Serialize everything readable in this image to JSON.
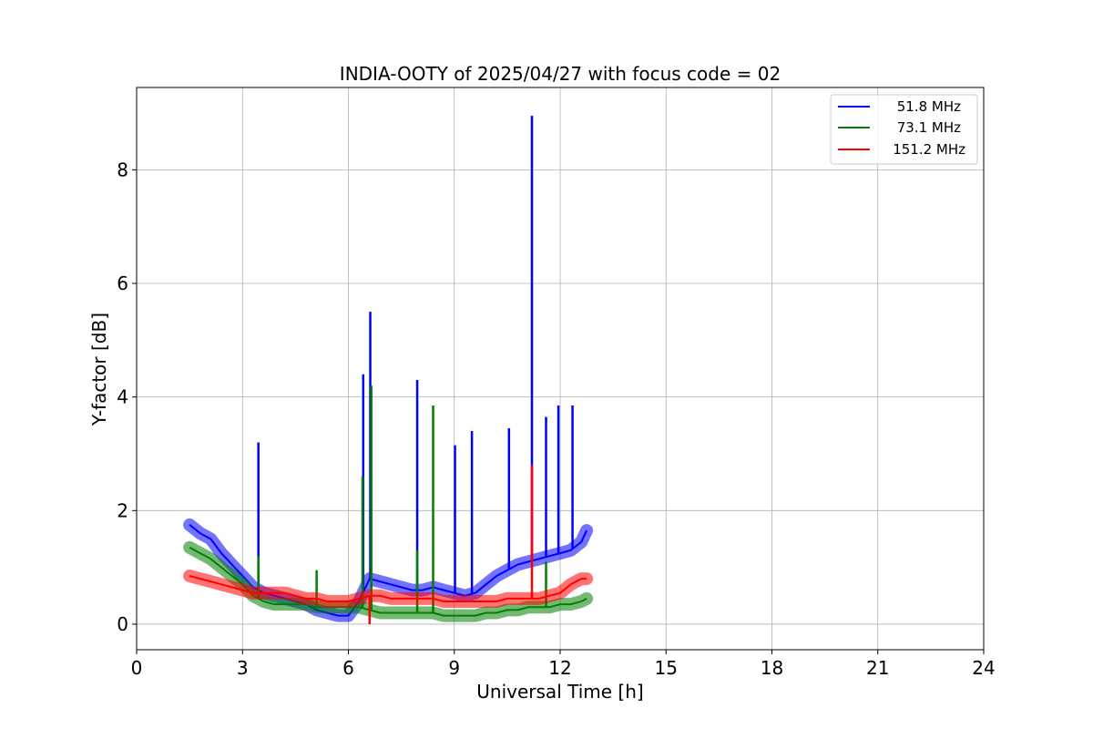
{
  "chart_data": {
    "type": "line",
    "title": "INDIA-OOTY of 2025/04/27 with focus code = 02",
    "xlabel": "Universal Time [h]",
    "ylabel": "Y-factor [dB]",
    "xlim": [
      0,
      24
    ],
    "ylim": [
      -0.45,
      9.45
    ],
    "xticks": [
      0,
      3,
      6,
      9,
      12,
      15,
      18,
      21,
      24
    ],
    "yticks": [
      0,
      2,
      4,
      6,
      8
    ],
    "grid": true,
    "legend_position": "top-right",
    "series": [
      {
        "name": "51.8 MHz",
        "color": "#0000ff",
        "x": [
          1.5,
          1.8,
          2.1,
          2.4,
          2.7,
          3.0,
          3.3,
          3.6,
          3.9,
          4.2,
          4.5,
          4.8,
          5.1,
          5.4,
          5.7,
          6.0,
          6.3,
          6.6,
          6.9,
          7.2,
          7.5,
          7.8,
          8.1,
          8.4,
          8.7,
          9.0,
          9.3,
          9.6,
          9.9,
          10.2,
          10.5,
          10.8,
          11.1,
          11.4,
          11.7,
          12.0,
          12.3,
          12.6,
          12.75
        ],
        "y": [
          1.75,
          1.6,
          1.5,
          1.25,
          1.05,
          0.85,
          0.65,
          0.55,
          0.5,
          0.45,
          0.4,
          0.35,
          0.25,
          0.2,
          0.15,
          0.15,
          0.4,
          0.8,
          0.75,
          0.7,
          0.65,
          0.6,
          0.6,
          0.65,
          0.6,
          0.55,
          0.5,
          0.55,
          0.7,
          0.85,
          0.95,
          1.05,
          1.1,
          1.15,
          1.2,
          1.25,
          1.3,
          1.45,
          1.65
        ],
        "spikes": [
          {
            "x": 3.45,
            "y": 3.2
          },
          {
            "x": 6.42,
            "y": 4.4
          },
          {
            "x": 6.62,
            "y": 5.5
          },
          {
            "x": 7.95,
            "y": 4.3
          },
          {
            "x": 9.02,
            "y": 3.15
          },
          {
            "x": 9.5,
            "y": 3.4
          },
          {
            "x": 10.55,
            "y": 3.45
          },
          {
            "x": 11.2,
            "y": 8.95
          },
          {
            "x": 11.6,
            "y": 3.65
          },
          {
            "x": 11.95,
            "y": 3.85
          },
          {
            "x": 12.35,
            "y": 3.85
          }
        ]
      },
      {
        "name": "73.1 MHz",
        "color": "#008000",
        "x": [
          1.5,
          1.8,
          2.1,
          2.4,
          2.7,
          3.0,
          3.3,
          3.6,
          3.9,
          4.2,
          4.5,
          4.8,
          5.1,
          5.4,
          5.7,
          6.0,
          6.3,
          6.6,
          6.9,
          7.2,
          7.5,
          7.8,
          8.1,
          8.4,
          8.7,
          9.0,
          9.3,
          9.6,
          9.9,
          10.2,
          10.5,
          10.8,
          11.1,
          11.4,
          11.7,
          12.0,
          12.3,
          12.6,
          12.75
        ],
        "y": [
          1.35,
          1.25,
          1.15,
          1.0,
          0.85,
          0.7,
          0.5,
          0.4,
          0.35,
          0.35,
          0.35,
          0.35,
          0.3,
          0.3,
          0.3,
          0.3,
          0.3,
          0.25,
          0.2,
          0.2,
          0.2,
          0.2,
          0.2,
          0.2,
          0.15,
          0.15,
          0.15,
          0.15,
          0.2,
          0.2,
          0.25,
          0.25,
          0.3,
          0.3,
          0.3,
          0.35,
          0.35,
          0.4,
          0.45
        ],
        "spikes": [
          {
            "x": 3.45,
            "y": 1.2
          },
          {
            "x": 5.1,
            "y": 0.95
          },
          {
            "x": 6.4,
            "y": 2.6
          },
          {
            "x": 6.65,
            "y": 4.2
          },
          {
            "x": 7.95,
            "y": 1.3
          },
          {
            "x": 8.4,
            "y": 3.85
          },
          {
            "x": 11.6,
            "y": 1.1
          }
        ]
      },
      {
        "name": "151.2 MHz",
        "color": "#ff0000",
        "x": [
          1.5,
          1.8,
          2.1,
          2.4,
          2.7,
          3.0,
          3.3,
          3.6,
          3.9,
          4.2,
          4.5,
          4.8,
          5.1,
          5.4,
          5.7,
          6.0,
          6.3,
          6.6,
          6.9,
          7.2,
          7.5,
          7.8,
          8.1,
          8.4,
          8.7,
          9.0,
          9.3,
          9.6,
          9.9,
          10.2,
          10.5,
          10.8,
          11.1,
          11.4,
          11.7,
          12.0,
          12.3,
          12.6,
          12.75
        ],
        "y": [
          0.85,
          0.8,
          0.75,
          0.7,
          0.65,
          0.6,
          0.55,
          0.55,
          0.55,
          0.55,
          0.5,
          0.45,
          0.45,
          0.4,
          0.4,
          0.4,
          0.45,
          0.5,
          0.5,
          0.45,
          0.45,
          0.45,
          0.45,
          0.45,
          0.4,
          0.4,
          0.4,
          0.4,
          0.4,
          0.4,
          0.45,
          0.45,
          0.45,
          0.45,
          0.5,
          0.55,
          0.7,
          0.8,
          0.8
        ],
        "spikes": [
          {
            "x": 6.6,
            "y": 0.0
          },
          {
            "x": 11.2,
            "y": 2.8
          }
        ]
      }
    ]
  }
}
